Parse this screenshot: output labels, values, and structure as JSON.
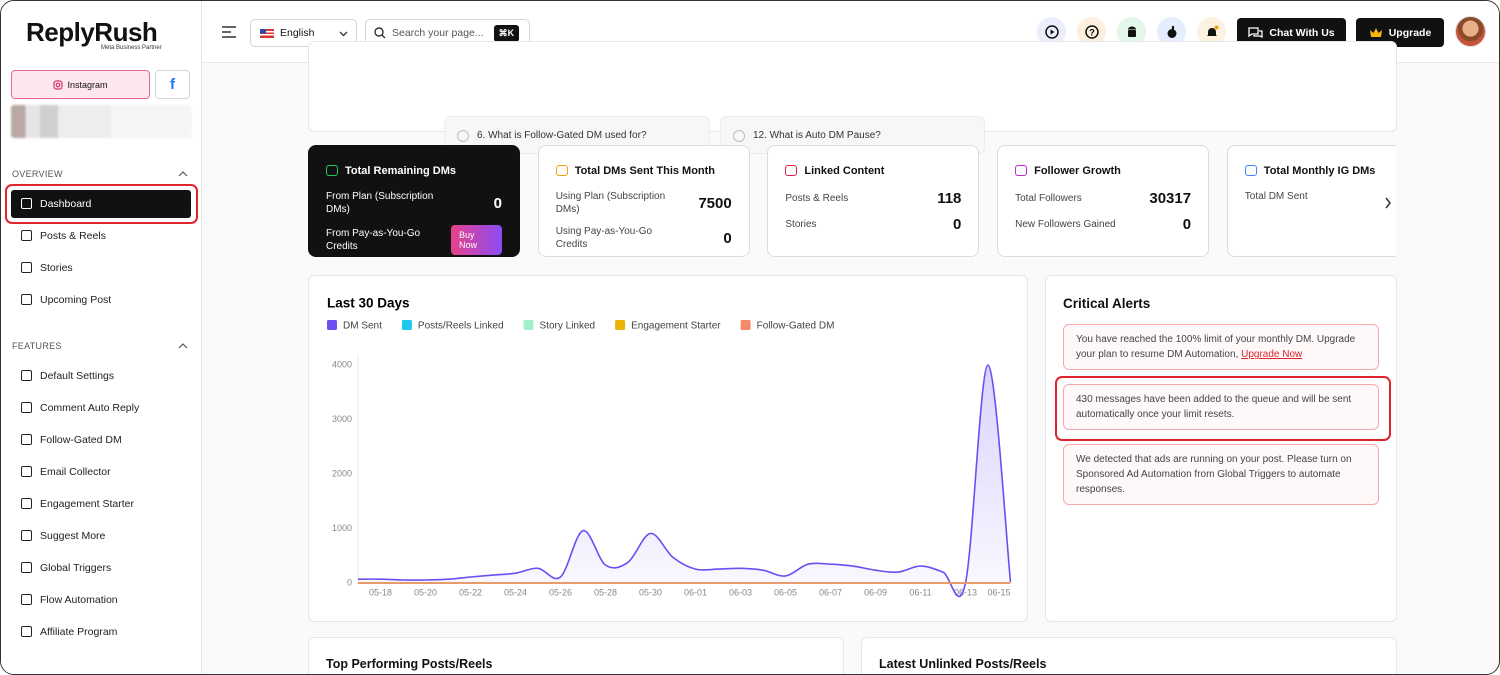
{
  "brand": {
    "name": "ReplyRush",
    "tagline": "Meta Business Partner"
  },
  "sidebar": {
    "tabs": [
      "Instagram"
    ],
    "sections": [
      {
        "title": "OVERVIEW",
        "items": [
          "Dashboard",
          "Posts & Reels",
          "Stories",
          "Upcoming Post"
        ]
      },
      {
        "title": "FEATURES",
        "items": [
          "Default Settings",
          "Comment Auto Reply",
          "Follow-Gated DM",
          "Email Collector",
          "Engagement Starter",
          "Suggest More",
          "Global Triggers",
          "Flow Automation",
          "Affiliate Program"
        ]
      }
    ]
  },
  "topbar": {
    "language": "English",
    "search_placeholder": "Search your page...",
    "shortcut": "⌘K",
    "chat_button": "Chat With Us",
    "upgrade_button": "Upgrade"
  },
  "faq": [
    "6. What is Follow-Gated DM used for?",
    "12. What is Auto DM Pause?"
  ],
  "stats": [
    {
      "title": "Total Remaining DMs",
      "rows": [
        {
          "label": "From Plan (Subscription DMs)",
          "value": 0
        },
        {
          "label": "From Pay-as-You-Go Credits",
          "button": "Buy Now"
        }
      ]
    },
    {
      "title": "Total DMs Sent This Month",
      "rows": [
        {
          "label": "Using Plan (Subscription DMs)",
          "value": 7500
        },
        {
          "label": "Using Pay-as-You-Go Credits",
          "value": 0
        }
      ]
    },
    {
      "title": "Linked Content",
      "rows": [
        {
          "label": "Posts & Reels",
          "value": 118
        },
        {
          "label": "Stories",
          "value": 0
        }
      ]
    },
    {
      "title": "Follower Growth",
      "rows": [
        {
          "label": "Total Followers",
          "value": 30317
        },
        {
          "label": "New Followers Gained",
          "value": 0
        }
      ]
    },
    {
      "title": "Total Monthly IG DMs",
      "rows": [
        {
          "label": "Total DM Sent"
        }
      ]
    }
  ],
  "chart_data": {
    "type": "line",
    "title": "Last 30 Days",
    "categories": [
      null,
      "05-18",
      null,
      "05-20",
      null,
      "05-22",
      null,
      "05-24",
      null,
      "05-26",
      null,
      "05-28",
      null,
      "05-30",
      null,
      "06-01",
      null,
      "06-03",
      null,
      "06-05",
      null,
      "06-07",
      null,
      "06-09",
      null,
      "06-11",
      null,
      "06-13",
      null,
      "06-15"
    ],
    "series": [
      {
        "name": "DM Sent",
        "color": "#6c4ef2",
        "values": [
          70,
          70,
          55,
          55,
          70,
          110,
          145,
          180,
          270,
          110,
          960,
          330,
          380,
          910,
          470,
          255,
          255,
          270,
          235,
          130,
          345,
          345,
          310,
          235,
          200,
          310,
          200,
          0,
          4000,
          20
        ]
      },
      {
        "name": "Posts/Reels Linked",
        "color": "#1ec8f0",
        "values": [
          0,
          0,
          0,
          0,
          0,
          0,
          0,
          0,
          0,
          0,
          0,
          0,
          0,
          0,
          0,
          0,
          0,
          0,
          0,
          0,
          0,
          0,
          0,
          0,
          0,
          0,
          0,
          0,
          0,
          0
        ]
      },
      {
        "name": "Story Linked",
        "color": "#a3efc9",
        "values": [
          0,
          0,
          0,
          0,
          0,
          0,
          0,
          0,
          0,
          0,
          0,
          0,
          0,
          0,
          0,
          0,
          0,
          0,
          0,
          0,
          0,
          0,
          0,
          0,
          0,
          0,
          0,
          0,
          0,
          0
        ]
      },
      {
        "name": "Engagement Starter",
        "color": "#eab308",
        "values": [
          0,
          0,
          0,
          0,
          0,
          0,
          0,
          0,
          0,
          0,
          0,
          0,
          0,
          0,
          0,
          0,
          0,
          0,
          0,
          0,
          0,
          0,
          0,
          0,
          0,
          0,
          0,
          0,
          0,
          0
        ]
      },
      {
        "name": "Follow-Gated DM",
        "color": "#f58a6b",
        "values": [
          0,
          0,
          0,
          0,
          0,
          0,
          0,
          0,
          0,
          0,
          0,
          0,
          0,
          0,
          0,
          0,
          0,
          0,
          0,
          0,
          0,
          0,
          0,
          0,
          0,
          0,
          0,
          0,
          0,
          0
        ]
      }
    ],
    "ylim": [
      0,
      4000
    ],
    "yticks": [
      0,
      1000,
      2000,
      3000,
      4000
    ],
    "grid": false,
    "smooth": true,
    "area": true
  },
  "alerts": {
    "title": "Critical Alerts",
    "items": [
      {
        "text": "You have reached the 100% limit of your monthly DM. Upgrade your plan to resume DM Automation,",
        "link": "Upgrade Now"
      },
      {
        "text": "430 messages have been added to the queue and will be sent automatically once your limit resets."
      },
      {
        "text": "We detected that ads are running on your post. Please turn on Sponsored Ad Automation from Global Triggers to automate responses."
      }
    ]
  },
  "panels": [
    "Top Performing Posts/Reels",
    "Latest Unlinked Posts/Reels"
  ]
}
